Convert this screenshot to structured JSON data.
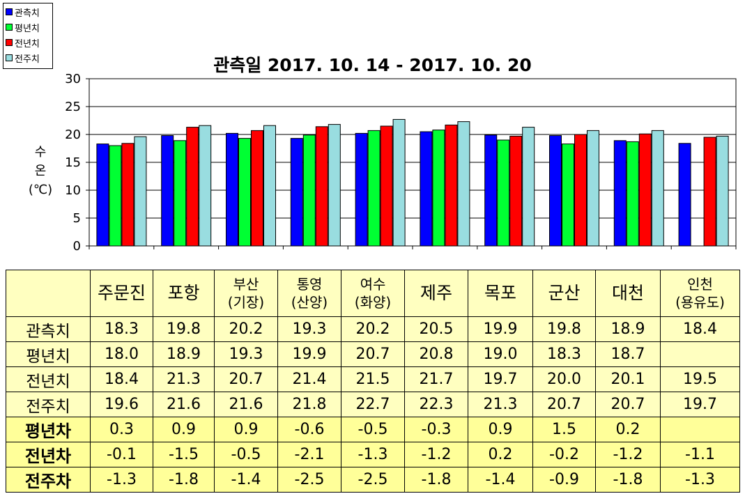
{
  "chart_data": {
    "type": "bar",
    "title": "관측일 2017. 10. 14 - 2017. 10. 20",
    "ylabel": "수온 (℃)",
    "ylim": [
      0,
      30
    ],
    "yticks": [
      0,
      5,
      10,
      15,
      20,
      25,
      30
    ],
    "grid": true,
    "legend_position": "top-left",
    "categories": [
      "주문진",
      "포항",
      "부산 (기장)",
      "통영 (산양)",
      "여수 (화양)",
      "제주",
      "목포",
      "군산",
      "대천",
      "인천 (용유도)"
    ],
    "series": [
      {
        "name": "관측치",
        "color": "#0000FF",
        "values": [
          18.3,
          19.8,
          20.2,
          19.3,
          20.2,
          20.5,
          19.9,
          19.8,
          18.9,
          18.4
        ]
      },
      {
        "name": "평년치",
        "color": "#00FF33",
        "values": [
          18.0,
          18.9,
          19.3,
          19.9,
          20.7,
          20.8,
          19.0,
          18.3,
          18.7,
          null
        ]
      },
      {
        "name": "전년치",
        "color": "#FF0000",
        "values": [
          18.4,
          21.3,
          20.7,
          21.4,
          21.5,
          21.7,
          19.7,
          20.0,
          20.1,
          19.5
        ]
      },
      {
        "name": "전주치",
        "color": "#99DDE0",
        "values": [
          19.6,
          21.6,
          21.6,
          21.8,
          22.7,
          22.3,
          21.3,
          20.7,
          20.7,
          19.7
        ]
      }
    ]
  },
  "legend": {
    "items": [
      {
        "label": "관측치",
        "color": "#0000FF"
      },
      {
        "label": "평년치",
        "color": "#00FF33"
      },
      {
        "label": "전년치",
        "color": "#FF0000"
      },
      {
        "label": "전주치",
        "color": "#99DDE0"
      }
    ]
  },
  "ylabel_lines": [
    "수",
    "온",
    "(℃)"
  ],
  "table": {
    "header": [
      {
        "lines": [
          "주문진"
        ]
      },
      {
        "lines": [
          "포항"
        ]
      },
      {
        "lines": [
          "부산",
          "(기장)"
        ]
      },
      {
        "lines": [
          "통영",
          "(산양)"
        ]
      },
      {
        "lines": [
          "여수",
          "(화양)"
        ]
      },
      {
        "lines": [
          "제주"
        ]
      },
      {
        "lines": [
          "목포"
        ]
      },
      {
        "lines": [
          "군산"
        ]
      },
      {
        "lines": [
          "대천"
        ]
      },
      {
        "lines": [
          "인천",
          "(용유도)"
        ]
      }
    ],
    "rows": [
      {
        "label": "관측치",
        "kind": "main",
        "values": [
          "18.3",
          "19.8",
          "20.2",
          "19.3",
          "20.2",
          "20.5",
          "19.9",
          "19.8",
          "18.9",
          "18.4"
        ]
      },
      {
        "label": "평년치",
        "kind": "main",
        "values": [
          "18.0",
          "18.9",
          "19.3",
          "19.9",
          "20.7",
          "20.8",
          "19.0",
          "18.3",
          "18.7",
          ""
        ]
      },
      {
        "label": "전년치",
        "kind": "main",
        "values": [
          "18.4",
          "21.3",
          "20.7",
          "21.4",
          "21.5",
          "21.7",
          "19.7",
          "20.0",
          "20.1",
          "19.5"
        ]
      },
      {
        "label": "전주치",
        "kind": "main",
        "values": [
          "19.6",
          "21.6",
          "21.6",
          "21.8",
          "22.7",
          "22.3",
          "21.3",
          "20.7",
          "20.7",
          "19.7"
        ]
      },
      {
        "label": "평년차",
        "kind": "diff",
        "values": [
          "0.3",
          "0.9",
          "0.9",
          "-0.6",
          "-0.5",
          "-0.3",
          "0.9",
          "1.5",
          "0.2",
          ""
        ]
      },
      {
        "label": "전년차",
        "kind": "diff",
        "values": [
          "-0.1",
          "-1.5",
          "-0.5",
          "-2.1",
          "-1.3",
          "-1.2",
          "0.2",
          "-0.2",
          "-1.2",
          "-1.1"
        ]
      },
      {
        "label": "전주차",
        "kind": "diff",
        "values": [
          "-1.3",
          "-1.8",
          "-1.4",
          "-2.5",
          "-2.5",
          "-1.8",
          "-1.4",
          "-0.9",
          "-1.8",
          "-1.3"
        ]
      }
    ]
  }
}
